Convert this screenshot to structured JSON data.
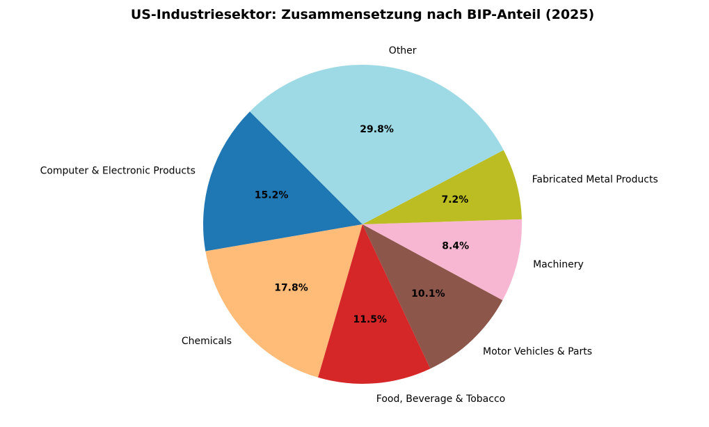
{
  "chart_data": {
    "type": "pie",
    "title": "US-Industriesektor: Zusammensetzung nach BIP-Anteil (2025)",
    "start_angle_deg": 135,
    "direction": "counterclockwise",
    "slices": [
      {
        "label": "Computer & Electronic Products",
        "value": 15.2,
        "pct_label": "15.2%",
        "color": "#1f77b4"
      },
      {
        "label": "Chemicals",
        "value": 17.8,
        "pct_label": "17.8%",
        "color": "#ffbb78"
      },
      {
        "label": "Food, Beverage & Tobacco",
        "value": 11.5,
        "pct_label": "11.5%",
        "color": "#d62728"
      },
      {
        "label": "Motor Vehicles & Parts",
        "value": 10.1,
        "pct_label": "10.1%",
        "color": "#8c564b"
      },
      {
        "label": "Machinery",
        "value": 8.4,
        "pct_label": "8.4%",
        "color": "#f7b6d2"
      },
      {
        "label": "Fabricated Metal Products",
        "value": 7.2,
        "pct_label": "7.2%",
        "color": "#bcbd22"
      },
      {
        "label": "Other",
        "value": 29.8,
        "pct_label": "29.8%",
        "color": "#9edae5"
      }
    ]
  }
}
